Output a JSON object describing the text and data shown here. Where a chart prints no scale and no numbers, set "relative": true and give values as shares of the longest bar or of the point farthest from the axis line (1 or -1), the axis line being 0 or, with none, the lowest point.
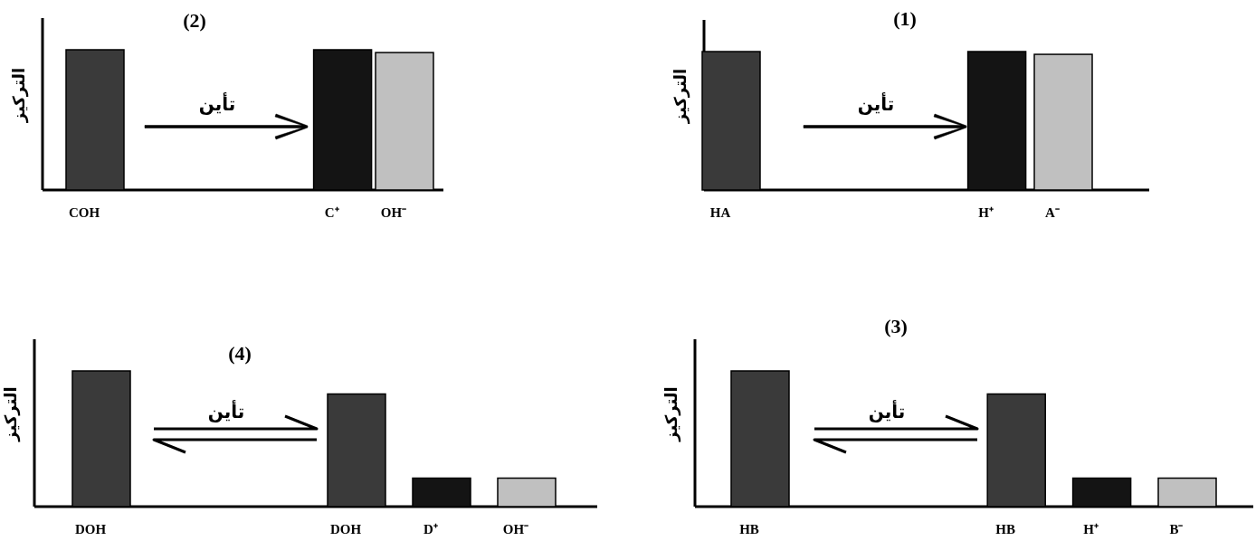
{
  "chart_data": [
    {
      "type": "bar",
      "title": "(1)",
      "ylabel": "التركيز",
      "annotations": [
        "تأين"
      ],
      "relative": true,
      "categories": [
        "HA",
        null,
        null,
        null,
        "H⁺",
        "A⁻"
      ],
      "values": [
        1,
        null,
        null,
        null,
        1,
        0.98
      ],
      "colors": [
        "#3a3a3a",
        null,
        null,
        null,
        "#141414",
        "#c0c0c0"
      ]
    },
    {
      "type": "bar",
      "title": "(2)",
      "ylabel": "التركيز",
      "annotations": [
        "تأين"
      ],
      "relative": true,
      "categories": [
        "COH",
        null,
        null,
        null,
        "C⁺",
        "OH⁻"
      ],
      "values": [
        1,
        null,
        null,
        null,
        1,
        0.98
      ],
      "colors": [
        "#3a3a3a",
        null,
        null,
        null,
        "#141414",
        "#c0c0c0"
      ]
    },
    {
      "type": "bar",
      "title": "(3)",
      "ylabel": "التركيز",
      "annotations": [
        "تأين"
      ],
      "relative": true,
      "categories": [
        "HB",
        null,
        null,
        "HB",
        "H⁺",
        "B⁻"
      ],
      "values": [
        1,
        null,
        null,
        0.83,
        0.21,
        0.21
      ],
      "colors": [
        "#3a3a3a",
        null,
        null,
        "#3a3a3a",
        "#141414",
        "#c0c0c0"
      ]
    },
    {
      "type": "bar",
      "title": "(4)",
      "ylabel": "التركيز",
      "annotations": [
        "تأين"
      ],
      "relative": true,
      "categories": [
        "DOH",
        null,
        null,
        "DOH",
        "D⁺",
        "OH⁻"
      ],
      "values": [
        1,
        null,
        null,
        0.83,
        0.21,
        0.21
      ],
      "colors": [
        "#3a3a3a",
        null,
        null,
        "#3a3a3a",
        "#141414",
        "#c0c0c0"
      ]
    }
  ]
}
